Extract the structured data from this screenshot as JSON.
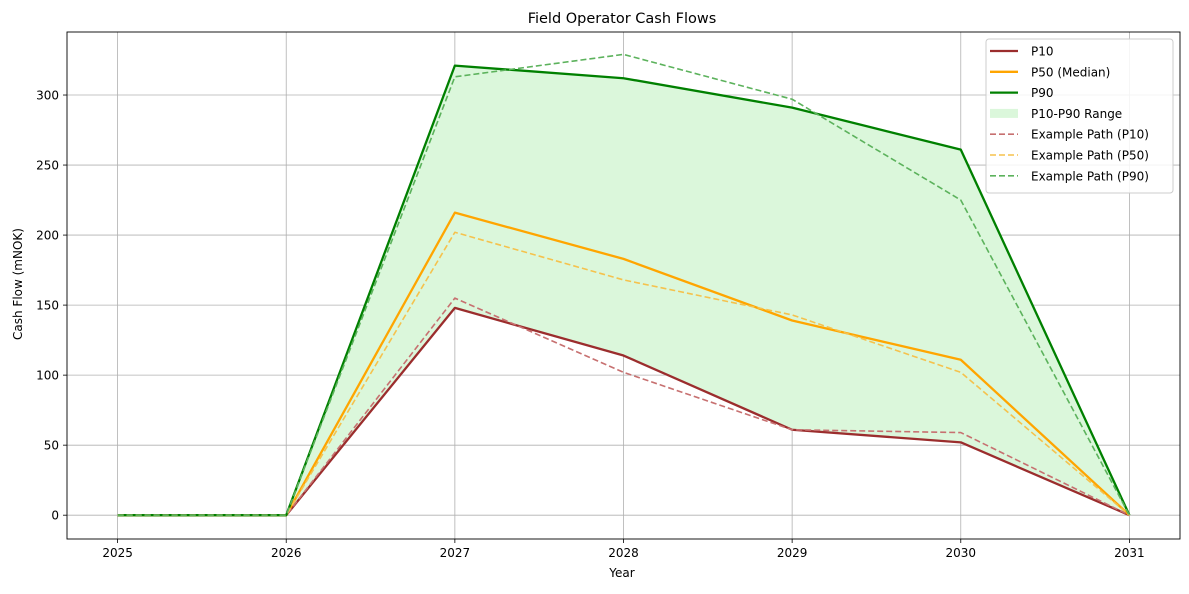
{
  "chart_data": {
    "type": "line",
    "title": "Field Operator Cash Flows",
    "xlabel": "Year",
    "ylabel": "Cash Flow (mNOK)",
    "x": [
      2025,
      2026,
      2027,
      2028,
      2029,
      2030,
      2031
    ],
    "xlim": [
      2024.7,
      2031.3
    ],
    "ylim": [
      -17,
      345
    ],
    "xticks": [
      "2025",
      "2026",
      "2027",
      "2028",
      "2029",
      "2030",
      "2031"
    ],
    "yticks": [
      0,
      50,
      100,
      150,
      200,
      250,
      300
    ],
    "grid": true,
    "legend_position": "top-right",
    "series": [
      {
        "name": "P10",
        "values": [
          0,
          0,
          148,
          114,
          61,
          52,
          0
        ],
        "color": "#9b2d2d",
        "style": "solid"
      },
      {
        "name": "P50 (Median)",
        "values": [
          0,
          0,
          216,
          183,
          139,
          111,
          0
        ],
        "color": "#ffa500",
        "style": "solid"
      },
      {
        "name": "P90",
        "values": [
          0,
          0,
          321,
          312,
          291,
          261,
          0
        ],
        "color": "#008000",
        "style": "solid"
      },
      {
        "name": "Example Path (P10)",
        "values": [
          0,
          0,
          155,
          102,
          61,
          59,
          0
        ],
        "color": "#c77070",
        "style": "dashed"
      },
      {
        "name": "Example Path (P50)",
        "values": [
          0,
          0,
          202,
          168,
          143,
          102,
          0
        ],
        "color": "#f5c24d",
        "style": "dashed"
      },
      {
        "name": "Example Path (P90)",
        "values": [
          0,
          0,
          313,
          329,
          297,
          225,
          0
        ],
        "color": "#5cb25c",
        "style": "dashed"
      }
    ],
    "range_band": {
      "name": "P10-P90 Range",
      "lower": "P10",
      "upper": "P90",
      "color": "#dbf7db"
    },
    "legend_order": [
      "P10",
      "P50 (Median)",
      "P90",
      "P10-P90 Range",
      "Example Path (P10)",
      "Example Path (P50)",
      "Example Path (P90)"
    ]
  }
}
